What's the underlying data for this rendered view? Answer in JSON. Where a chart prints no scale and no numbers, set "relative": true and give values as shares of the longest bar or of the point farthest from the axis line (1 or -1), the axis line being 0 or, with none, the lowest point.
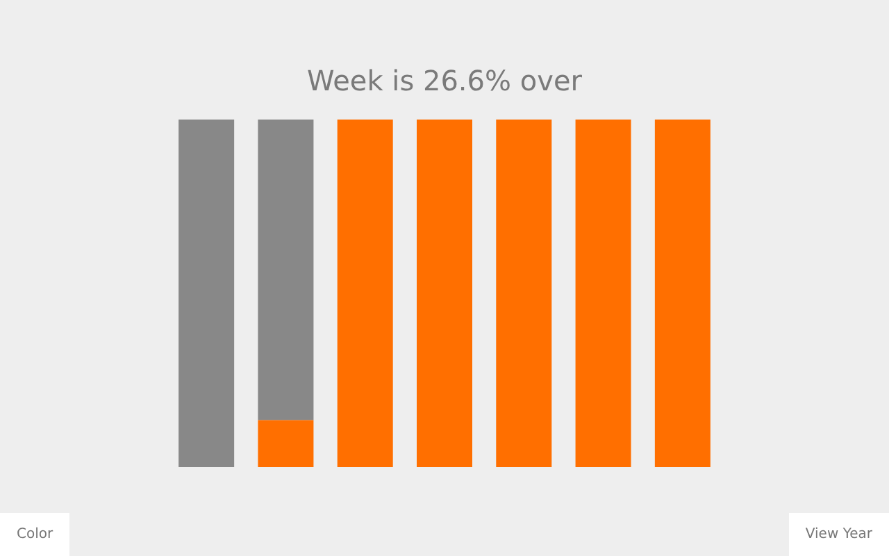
{
  "chart_data": {
    "type": "bar",
    "title": "Week is 26.6% over",
    "stacked": true,
    "relative": true,
    "legend": false,
    "categories": [
      null,
      null,
      null,
      null,
      null,
      null,
      null
    ],
    "series": [
      {
        "color": "#ff6f00",
        "values": [
          0,
          0.135,
          1,
          1,
          1,
          1,
          1
        ]
      },
      {
        "color": "#888888",
        "values": [
          1,
          0.865,
          0,
          0,
          0,
          0,
          0
        ]
      }
    ],
    "annotations": [
      "Color",
      "View Year"
    ]
  }
}
